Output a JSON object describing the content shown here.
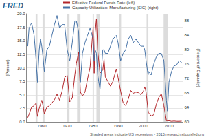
{
  "chart_data": {
    "type": "line",
    "logo_text": "FRED",
    "note": "Shaded areas indicate US recessions - 2015 research.stlouisfed.org",
    "y_label": "(Percent)",
    "y2_label": "(Percent of Capacity)",
    "x": [
      1954.5,
      1955,
      1956,
      1957,
      1957.8,
      1958.3,
      1959,
      1959.5,
      1960,
      1960.5,
      1961,
      1962,
      1963,
      1964,
      1965,
      1966,
      1967,
      1968,
      1969,
      1970,
      1971,
      1972,
      1973,
      1973.6,
      1974.5,
      1975.2,
      1976,
      1977,
      1978,
      1979,
      1980.2,
      1980.6,
      1981,
      1981.5,
      1982,
      1982.9,
      1984,
      1984.5,
      1985,
      1986,
      1987,
      1988,
      1989.3,
      1990,
      1991,
      1992,
      1993,
      1994,
      1995,
      1996,
      1997,
      1998,
      1999,
      2000,
      2000.5,
      2001,
      2001.8,
      2002,
      2003,
      2004,
      2005,
      2006,
      2007,
      2008,
      2009,
      2009.4,
      2010,
      2011,
      2012,
      2013,
      2014,
      2015
    ],
    "series": [
      {
        "name": "Effective Federal Funds Rate (left)",
        "color": "#b3262a",
        "axis": "y",
        "values": [
          0.8,
          1.4,
          2.7,
          3.0,
          3.5,
          1.0,
          2.5,
          3.3,
          4.0,
          3.0,
          1.5,
          2.7,
          3.0,
          3.5,
          4.1,
          5.1,
          4.0,
          5.7,
          8.2,
          8.6,
          3.7,
          4.4,
          8.7,
          10.8,
          12.9,
          5.5,
          4.8,
          5.5,
          7.9,
          10.1,
          17.6,
          9.0,
          16.6,
          19.1,
          13.2,
          9.0,
          9.6,
          11.6,
          8.3,
          7.5,
          6.6,
          7.5,
          9.8,
          8.2,
          5.7,
          3.5,
          3.0,
          4.2,
          5.8,
          5.3,
          5.5,
          5.4,
          5.0,
          5.7,
          6.5,
          5.5,
          2.1,
          1.7,
          1.1,
          1.3,
          3.2,
          4.5,
          5.2,
          3.0,
          0.2,
          0.2,
          0.2,
          0.1,
          0.15,
          0.1,
          0.1,
          0.13
        ]
      },
      {
        "name": "Capacity Utilization: Manufacturing (SIC) (right)",
        "color": "#4572a7",
        "axis": "y2",
        "values": [
          81,
          86,
          87.5,
          84,
          77,
          71,
          80,
          83,
          81,
          78,
          74,
          80,
          81,
          84,
          87,
          89.5,
          86,
          87,
          87,
          80,
          77,
          82,
          88,
          88,
          85,
          71,
          79,
          82,
          84,
          86,
          83,
          77,
          80,
          79,
          73,
          69,
          80,
          80,
          79,
          79,
          81,
          83,
          84,
          82,
          77,
          79,
          80,
          83,
          84,
          82,
          83,
          82,
          81,
          81,
          80,
          77,
          73,
          74,
          73,
          76,
          78,
          79,
          79,
          77,
          66,
          63,
          71,
          74,
          75.5,
          75.8,
          77,
          76.5
        ]
      }
    ],
    "recessions": [
      [
        1957.6,
        1958.3
      ],
      [
        1960.3,
        1961.1
      ],
      [
        1969.9,
        1970.9
      ],
      [
        1973.9,
        1975.2
      ],
      [
        1980.0,
        1980.5
      ],
      [
        1981.5,
        1982.9
      ],
      [
        1990.5,
        1991.2
      ],
      [
        2001.2,
        2001.9
      ],
      [
        2007.9,
        2009.5
      ]
    ],
    "xlim": [
      1954,
      2015.5
    ],
    "xticks": [
      1960,
      1970,
      1980,
      1990,
      2000,
      2010
    ],
    "ylim": [
      0,
      20
    ],
    "yticks": [
      {
        "value": 0,
        "label": "0.0"
      },
      2.5,
      {
        "value": 5,
        "label": "5.0"
      },
      7.5,
      {
        "value": 10,
        "label": "10.0"
      },
      12.5,
      {
        "value": 15,
        "label": "15.0"
      },
      17.5,
      {
        "value": 20,
        "label": "20.0"
      }
    ],
    "y2lim": [
      60,
      90
    ],
    "y2ticks": [
      60,
      64,
      68,
      72,
      76,
      80,
      84,
      88
    ],
    "grid": true,
    "legend": "top"
  }
}
